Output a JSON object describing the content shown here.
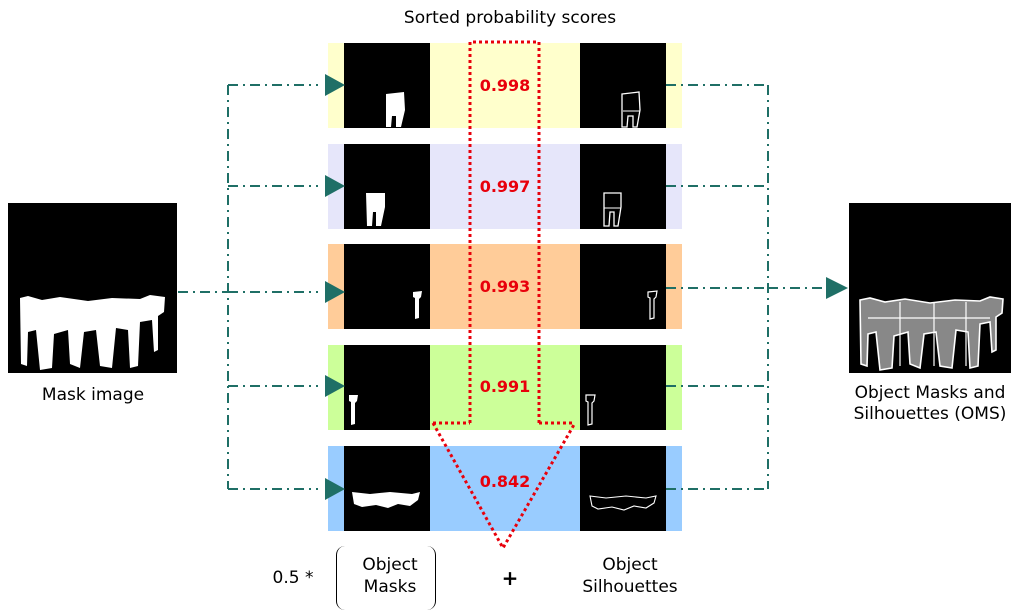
{
  "title": "Sorted probability scores",
  "input_label": "Mask image",
  "output_label": "Object Masks and Silhouettes (OMS)",
  "formula": {
    "coefficient": "0.5 *",
    "masks_label": "Object Masks",
    "operator": "+",
    "silhouettes_label": "Object Silhouettes"
  },
  "rows": [
    {
      "score": "0.998",
      "color": "#ffffcc"
    },
    {
      "score": "0.997",
      "color": "#e6e6fa"
    },
    {
      "score": "0.993",
      "color": "#ffcc99"
    },
    {
      "score": "0.991",
      "color": "#ccff99"
    },
    {
      "score": "0.842",
      "color": "#99ccff"
    }
  ],
  "colors": {
    "connector": "#1f6f66",
    "highlight": "#e8000b"
  }
}
